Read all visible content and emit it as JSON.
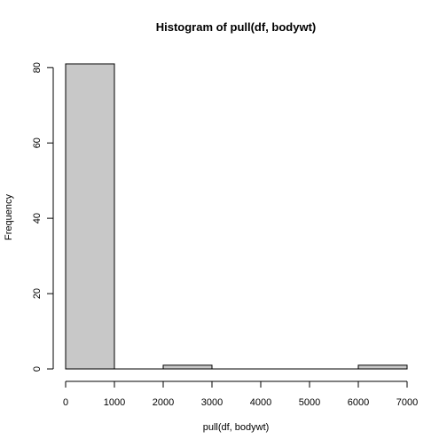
{
  "chart_data": {
    "type": "bar",
    "subtype": "histogram",
    "title": "Histogram of pull(df, bodywt)",
    "xlabel": "pull(df, bodywt)",
    "ylabel": "Frequency",
    "bins": [
      {
        "x0": 0,
        "x1": 1000,
        "count": 81
      },
      {
        "x0": 1000,
        "x1": 2000,
        "count": 0
      },
      {
        "x0": 2000,
        "x1": 3000,
        "count": 1
      },
      {
        "x0": 3000,
        "x1": 4000,
        "count": 0
      },
      {
        "x0": 4000,
        "x1": 5000,
        "count": 0
      },
      {
        "x0": 5000,
        "x1": 6000,
        "count": 0
      },
      {
        "x0": 6000,
        "x1": 7000,
        "count": 1
      }
    ],
    "xlim": [
      0,
      7000
    ],
    "ylim": [
      0,
      81
    ],
    "xticks": [
      "0",
      "1000",
      "2000",
      "3000",
      "4000",
      "5000",
      "6000",
      "7000"
    ],
    "yticks": [
      "0",
      "20",
      "40",
      "60",
      "80"
    ],
    "bar_color": "#c8c8c8",
    "edge_color": "#000000",
    "grid": false,
    "legend": "none"
  }
}
